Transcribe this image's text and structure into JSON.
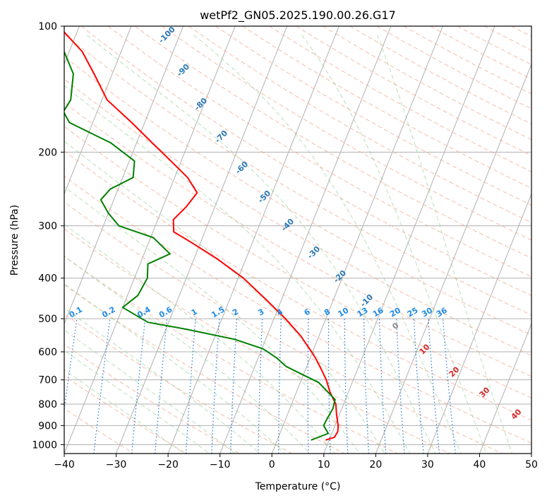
{
  "chart_data": {
    "type": "line",
    "subtype": "skew-t log-p diagram",
    "title": "wetPf2_GN05.2025.190.00.26.G17",
    "xlabel": "Temperature (°C)",
    "ylabel": "Pressure (hPa)",
    "xlim": [
      -40,
      50
    ],
    "ylim": [
      1050,
      100
    ],
    "y_scale": "log",
    "x_ticks": [
      -40,
      -30,
      -20,
      -10,
      0,
      10,
      20,
      30,
      40,
      50
    ],
    "x_tick_labels": [
      "−40",
      "−30",
      "−20",
      "−10",
      "0",
      "10",
      "20",
      "30",
      "40",
      "50"
    ],
    "y_ticks": [
      100,
      200,
      300,
      400,
      500,
      600,
      700,
      800,
      900,
      1000
    ],
    "y_tick_labels": [
      "100",
      "200",
      "300",
      "400",
      "500",
      "600",
      "700",
      "800",
      "900",
      "1000"
    ],
    "grid": true,
    "series": [
      {
        "color": "#ff0000",
        "points": [
          {
            "p": 975,
            "t": 9.3
          },
          {
            "p": 960,
            "t": 10.8
          },
          {
            "p": 930,
            "t": 11.0
          },
          {
            "p": 900,
            "t": 10.6
          },
          {
            "p": 850,
            "t": 9.5
          },
          {
            "p": 800,
            "t": 8.5
          },
          {
            "p": 750,
            "t": 6.5
          },
          {
            "p": 700,
            "t": 4.8
          },
          {
            "p": 660,
            "t": 3.0
          },
          {
            "p": 620,
            "t": 1.0
          },
          {
            "p": 600,
            "t": -0.2
          },
          {
            "p": 550,
            "t": -3.5
          },
          {
            "p": 500,
            "t": -7.8
          },
          {
            "p": 450,
            "t": -13.0
          },
          {
            "p": 400,
            "t": -19.0
          },
          {
            "p": 360,
            "t": -25.5
          },
          {
            "p": 330,
            "t": -31.5
          },
          {
            "p": 310,
            "t": -36.0
          },
          {
            "p": 290,
            "t": -37.0
          },
          {
            "p": 270,
            "t": -35.5
          },
          {
            "p": 250,
            "t": -34.5
          },
          {
            "p": 230,
            "t": -37.5
          },
          {
            "p": 210,
            "t": -42.0
          },
          {
            "p": 190,
            "t": -47.0
          },
          {
            "p": 170,
            "t": -52.5
          },
          {
            "p": 150,
            "t": -59.0
          },
          {
            "p": 130,
            "t": -63.5
          },
          {
            "p": 115,
            "t": -67.5
          },
          {
            "p": 100,
            "t": -74.0
          }
        ]
      },
      {
        "color": "#008000",
        "points": [
          {
            "p": 975,
            "t": 6.5
          },
          {
            "p": 940,
            "t": 9.3
          },
          {
            "p": 900,
            "t": 7.8
          },
          {
            "p": 860,
            "t": 8.0
          },
          {
            "p": 820,
            "t": 8.3
          },
          {
            "p": 780,
            "t": 8.0
          },
          {
            "p": 740,
            "t": 5.5
          },
          {
            "p": 710,
            "t": 3.5
          },
          {
            "p": 680,
            "t": -0.2
          },
          {
            "p": 650,
            "t": -4.0
          },
          {
            "p": 620,
            "t": -6.5
          },
          {
            "p": 590,
            "t": -9.8
          },
          {
            "p": 560,
            "t": -16.0
          },
          {
            "p": 530,
            "t": -26.0
          },
          {
            "p": 510,
            "t": -34.0
          },
          {
            "p": 470,
            "t": -40.0
          },
          {
            "p": 440,
            "t": -38.0
          },
          {
            "p": 400,
            "t": -37.5
          },
          {
            "p": 370,
            "t": -38.5
          },
          {
            "p": 350,
            "t": -35.0
          },
          {
            "p": 320,
            "t": -39.5
          },
          {
            "p": 300,
            "t": -47.0
          },
          {
            "p": 280,
            "t": -50.0
          },
          {
            "p": 260,
            "t": -52.5
          },
          {
            "p": 245,
            "t": -51.5
          },
          {
            "p": 230,
            "t": -48.0
          },
          {
            "p": 210,
            "t": -49.0
          },
          {
            "p": 190,
            "t": -55.0
          },
          {
            "p": 170,
            "t": -64.5
          },
          {
            "p": 160,
            "t": -66.5
          },
          {
            "p": 150,
            "t": -66.0
          },
          {
            "p": 130,
            "t": -67.5
          },
          {
            "p": 115,
            "t": -71.0
          },
          {
            "p": 100,
            "t": -75.5
          }
        ]
      }
    ],
    "dry_adiabat_labels": [
      "-100",
      "-90",
      "-80",
      "-70",
      "-60",
      "-50",
      "-40",
      "-30",
      "-20",
      "-10"
    ],
    "mixing_ratio_labels": [
      "0.1",
      "0.2",
      "0.4",
      "0.6",
      "1",
      "1.5",
      "2",
      "3",
      "4",
      "6",
      "8",
      "10",
      "13",
      "16",
      "20",
      "25",
      "30",
      "36"
    ],
    "freezing_labels": [
      "0",
      "10",
      "20",
      "30",
      "40"
    ]
  }
}
